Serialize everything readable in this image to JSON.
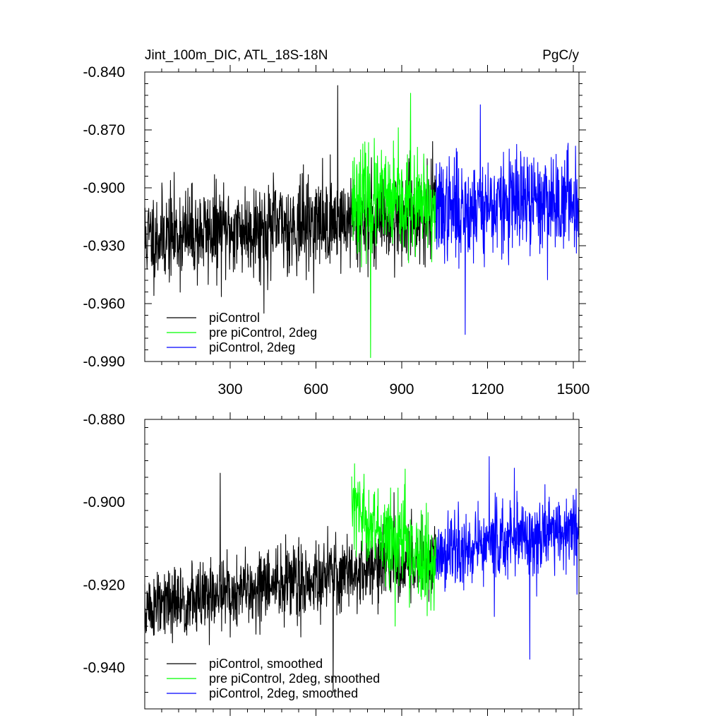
{
  "header": {
    "title": "Jint_100m_DIC, ATL_18S-18N",
    "units": "PgC/y"
  },
  "chart_data": [
    {
      "type": "line",
      "panel": "top",
      "xlim": [
        1,
        1520
      ],
      "ylim": [
        -0.99,
        -0.84
      ],
      "xticks": [
        300,
        600,
        900,
        1200,
        1500
      ],
      "xtick_labels": [
        "300",
        "600",
        "900",
        "1200",
        "1500"
      ],
      "yticks": [
        -0.84,
        -0.87,
        -0.9,
        -0.93,
        -0.96,
        -0.99
      ],
      "ytick_labels": [
        "-0.840",
        "-0.870",
        "-0.900",
        "-0.930",
        "-0.960",
        "-0.990"
      ],
      "legend_placement": "bottom-left",
      "series": [
        {
          "name": "piControl",
          "color": "#000000",
          "x_range": [
            1,
            1020
          ],
          "mean_start": -0.926,
          "mean_end": -0.913,
          "spread": 0.012,
          "peak_max": -0.847,
          "peak_min": -0.965,
          "seed": 11
        },
        {
          "name": "pre piControl, 2deg",
          "color": "#00ff00",
          "x_range": [
            725,
            1020
          ],
          "mean_start": -0.905,
          "mean_end": -0.912,
          "spread": 0.013,
          "peak_max": -0.851,
          "peak_min": -0.988,
          "seed": 23
        },
        {
          "name": "piControl, 2deg",
          "color": "#0000ff",
          "x_range": [
            1020,
            1520
          ],
          "mean_start": -0.912,
          "mean_end": -0.906,
          "spread": 0.013,
          "peak_max": -0.857,
          "peak_min": -0.976,
          "seed": 37
        }
      ]
    },
    {
      "type": "line",
      "panel": "bottom",
      "xlim": [
        1,
        1520
      ],
      "ylim": [
        -0.95,
        -0.88
      ],
      "xticks": [
        300,
        600,
        900,
        1200,
        1500
      ],
      "yticks": [
        -0.88,
        -0.9,
        -0.92,
        -0.94
      ],
      "ytick_labels": [
        "-0.880",
        "-0.900",
        "-0.920",
        "-0.940"
      ],
      "legend_placement": "bottom-left",
      "series": [
        {
          "name": "piControl, smoothed",
          "color": "#000000",
          "x_range": [
            1,
            1020
          ],
          "mean_start": -0.926,
          "mean_end": -0.913,
          "spread": 0.0045,
          "peak_max": -0.893,
          "peak_min": -0.946,
          "seed": 51
        },
        {
          "name": "pre piControl, 2deg, smoothed",
          "color": "#00ff00",
          "x_range": [
            725,
            1020
          ],
          "mean_start": -0.902,
          "mean_end": -0.916,
          "spread": 0.005,
          "peak_max": -0.892,
          "peak_min": -0.93,
          "seed": 63
        },
        {
          "name": "piControl, 2deg, smoothed",
          "color": "#0000ff",
          "x_range": [
            1020,
            1520
          ],
          "mean_start": -0.913,
          "mean_end": -0.906,
          "spread": 0.005,
          "peak_max": -0.889,
          "peak_min": -0.938,
          "seed": 77
        }
      ]
    }
  ]
}
